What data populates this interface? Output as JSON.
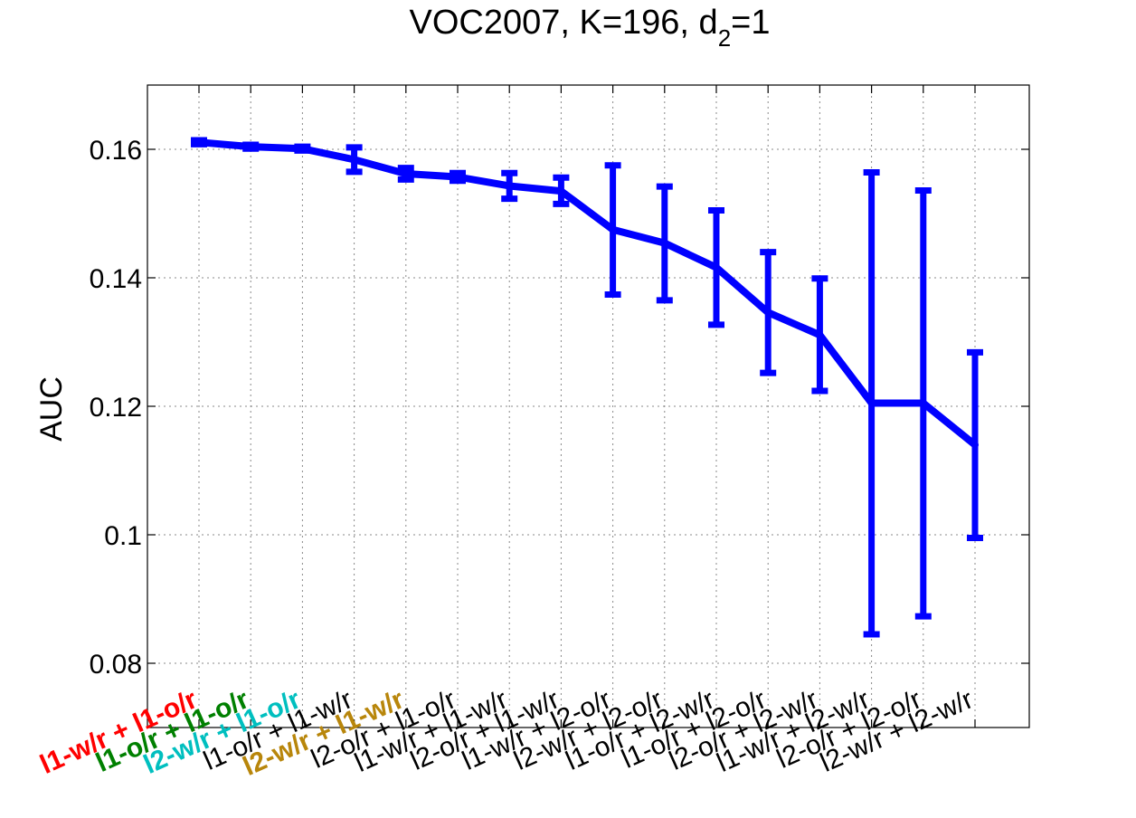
{
  "chart_data": {
    "type": "line",
    "title": "VOC2007, K=196, d",
    "title_subscript": "2",
    "title_suffix": "=1",
    "xlabel": "",
    "ylabel": "AUC",
    "ylim": [
      0.07,
      0.17
    ],
    "yticks": [
      0.08,
      0.1,
      0.12,
      0.14,
      0.16
    ],
    "ytick_labels": [
      "0.08",
      "0.1",
      "0.12",
      "0.14",
      "0.16"
    ],
    "grid": true,
    "line_color": "#0000ff",
    "categories": [
      {
        "label": "l1-w/r + l1-o/r",
        "color": "#ff0000",
        "bold": true
      },
      {
        "label": "l1-o/r + l1-o/r",
        "color": "#008000",
        "bold": true
      },
      {
        "label": "l2-w/r + l1-o/r",
        "color": "#00bfbf",
        "bold": true
      },
      {
        "label": "l1-o/r + l1-w/r",
        "color": "#000000",
        "bold": false
      },
      {
        "label": "l2-w/r + l1-w/r",
        "color": "#b8860b",
        "bold": true
      },
      {
        "label": "l2-o/r + l1-o/r",
        "color": "#000000",
        "bold": false
      },
      {
        "label": "l1-w/r + l1-w/r",
        "color": "#000000",
        "bold": false
      },
      {
        "label": "l2-o/r + l1-w/r",
        "color": "#000000",
        "bold": false
      },
      {
        "label": "l1-w/r + l2-o/r",
        "color": "#000000",
        "bold": false
      },
      {
        "label": "l2-w/r + l2-o/r",
        "color": "#000000",
        "bold": false
      },
      {
        "label": "l1-o/r + l2-w/r",
        "color": "#000000",
        "bold": false
      },
      {
        "label": "l1-o/r + l2-o/r",
        "color": "#000000",
        "bold": false
      },
      {
        "label": "l2-o/r + l2-w/r",
        "color": "#000000",
        "bold": false
      },
      {
        "label": "l1-w/r + l2-w/r",
        "color": "#000000",
        "bold": false
      },
      {
        "label": "l2-o/r + l2-o/r",
        "color": "#000000",
        "bold": false
      },
      {
        "label": "l2-w/r + l2-w/r",
        "color": "#000000",
        "bold": false
      }
    ],
    "series": [
      {
        "values": [
          0.1611,
          0.1604,
          0.1601,
          0.1584,
          0.1562,
          0.1557,
          0.1543,
          0.1535,
          0.1475,
          0.1454,
          0.1416,
          0.1346,
          0.1311,
          0.1205,
          0.1205,
          0.114
        ],
        "error_low": [
          0.1608,
          0.1601,
          0.1598,
          0.1565,
          0.1553,
          0.1551,
          0.1523,
          0.1515,
          0.1374,
          0.1365,
          0.1327,
          0.1252,
          0.1224,
          0.0845,
          0.0873,
          0.0995
        ],
        "error_high": [
          0.1614,
          0.1607,
          0.1604,
          0.1603,
          0.1571,
          0.1563,
          0.1563,
          0.1556,
          0.1575,
          0.1542,
          0.1505,
          0.144,
          0.1399,
          0.1564,
          0.1536,
          0.1284
        ]
      }
    ]
  }
}
